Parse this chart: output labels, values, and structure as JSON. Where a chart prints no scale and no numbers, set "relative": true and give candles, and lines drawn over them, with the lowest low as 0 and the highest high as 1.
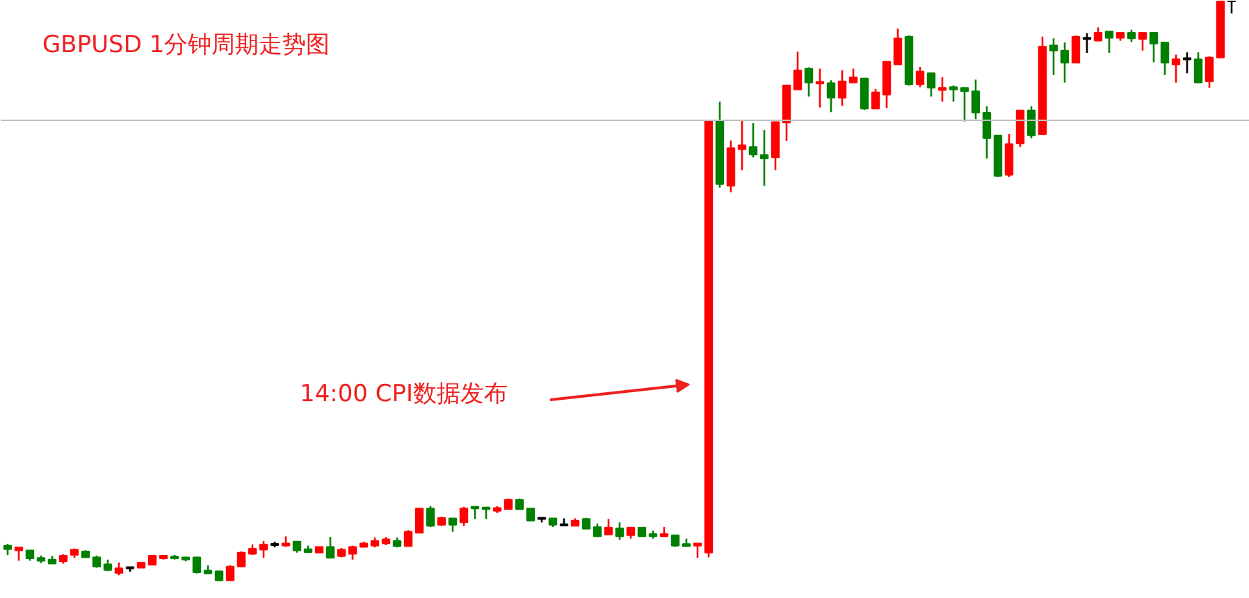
{
  "chart_data": {
    "type": "candlestick",
    "title": "GBPUSD 1分钟周期走势图",
    "relative": true,
    "categories": [
      null,
      null,
      null,
      null,
      null,
      null,
      null,
      null,
      null,
      null,
      null,
      null,
      null,
      null,
      null,
      null,
      null,
      null,
      null,
      null,
      null,
      null,
      null,
      null,
      null,
      null,
      null,
      null,
      null,
      null,
      null,
      null,
      null,
      null,
      null,
      null,
      null,
      null,
      null,
      null,
      null,
      null,
      null,
      null,
      null,
      null,
      null,
      null,
      null,
      null,
      null,
      null,
      null,
      null,
      null,
      null,
      null,
      null,
      null,
      null,
      null,
      null,
      null,
      null,
      null,
      null,
      null,
      null,
      null,
      null,
      null,
      null,
      null,
      null,
      null,
      null,
      null,
      null,
      null,
      null,
      null,
      null,
      null,
      null,
      null,
      null,
      null,
      null,
      null,
      null,
      null,
      null,
      null,
      null,
      null,
      null,
      null,
      null,
      null,
      null,
      null,
      null,
      null,
      null,
      null,
      null,
      null,
      null,
      null,
      null,
      null
    ],
    "ohlc": [
      [
        0.061,
        0.064,
        0.045,
        0.055
      ],
      [
        0.053,
        0.058,
        0.035,
        0.058
      ],
      [
        0.053,
        0.053,
        0.035,
        0.039
      ],
      [
        0.04,
        0.044,
        0.031,
        0.035
      ],
      [
        0.037,
        0.043,
        0.03,
        0.03
      ],
      [
        0.034,
        0.046,
        0.03,
        0.044
      ],
      [
        0.045,
        0.056,
        0.04,
        0.054
      ],
      [
        0.051,
        0.053,
        0.04,
        0.041
      ],
      [
        0.041,
        0.044,
        0.023,
        0.025
      ],
      [
        0.029,
        0.037,
        0.017,
        0.019
      ],
      [
        0.014,
        0.032,
        0.01,
        0.022
      ],
      [
        0.023,
        0.023,
        0.016,
        0.023
      ],
      [
        0.023,
        0.032,
        0.023,
        0.032
      ],
      [
        0.028,
        0.044,
        0.027,
        0.044
      ],
      [
        0.039,
        0.044,
        0.037,
        0.044
      ],
      [
        0.042,
        0.045,
        0.037,
        0.039
      ],
      [
        0.041,
        0.041,
        0.034,
        0.037
      ],
      [
        0.041,
        0.041,
        0.013,
        0.015
      ],
      [
        0.018,
        0.027,
        0.013,
        0.013
      ],
      [
        0.017,
        0.017,
        0,
        0.001
      ],
      [
        0.001,
        0.027,
        0.001,
        0.025
      ],
      [
        0.025,
        0.051,
        0.024,
        0.049
      ],
      [
        0.047,
        0.063,
        0.045,
        0.056
      ],
      [
        0.054,
        0.069,
        0.04,
        0.063
      ],
      [
        0.063,
        0.068,
        0.058,
        0.063
      ],
      [
        0.061,
        0.077,
        0.059,
        0.065
      ],
      [
        0.068,
        0.068,
        0.049,
        0.053
      ],
      [
        0.055,
        0.061,
        0.05,
        0.05
      ],
      [
        0.049,
        0.059,
        0.049,
        0.059
      ],
      [
        0.059,
        0.076,
        0.04,
        0.04
      ],
      [
        0.043,
        0.057,
        0.041,
        0.054
      ],
      [
        0.047,
        0.061,
        0.037,
        0.059
      ],
      [
        0.059,
        0.068,
        0.058,
        0.065
      ],
      [
        0.061,
        0.075,
        0.058,
        0.069
      ],
      [
        0.065,
        0.076,
        0.062,
        0.072
      ],
      [
        0.069,
        0.075,
        0.058,
        0.06
      ],
      [
        0.06,
        0.088,
        0.06,
        0.085
      ],
      [
        0.083,
        0.125,
        0.083,
        0.125
      ],
      [
        0.125,
        0.129,
        0.093,
        0.095
      ],
      [
        0.097,
        0.111,
        0.095,
        0.109
      ],
      [
        0.108,
        0.108,
        0.085,
        0.097
      ],
      [
        0.101,
        0.128,
        0.095,
        0.125
      ],
      [
        0.128,
        0.128,
        0.107,
        0.125
      ],
      [
        0.127,
        0.128,
        0.107,
        0.124
      ],
      [
        0.121,
        0.129,
        0.117,
        0.126
      ],
      [
        0.124,
        0.142,
        0.124,
        0.14
      ],
      [
        0.14,
        0.142,
        0.124,
        0.124
      ],
      [
        0.125,
        0.125,
        0.104,
        0.104
      ],
      [
        0.108,
        0.108,
        0.101,
        0.108
      ],
      [
        0.108,
        0.108,
        0.093,
        0.097
      ],
      [
        0.097,
        0.108,
        0.097,
        0.097
      ],
      [
        0.095,
        0.108,
        0.095,
        0.104
      ],
      [
        0.107,
        0.109,
        0.09,
        0.09
      ],
      [
        0.093,
        0.099,
        0.076,
        0.077
      ],
      [
        0.08,
        0.107,
        0.08,
        0.092
      ],
      [
        0.091,
        0.101,
        0.071,
        0.077
      ],
      [
        0.079,
        0.092,
        0.073,
        0.092
      ],
      [
        0.092,
        0.092,
        0.076,
        0.077
      ],
      [
        0.081,
        0.087,
        0.073,
        0.077
      ],
      [
        0.077,
        0.093,
        0.077,
        0.081
      ],
      [
        0.079,
        0.079,
        0.059,
        0.061
      ],
      [
        0.064,
        0.073,
        0.06,
        0.06
      ],
      [
        0.061,
        0.065,
        0.04,
        0.065
      ],
      [
        0.049,
        0.794,
        0.041,
        0.794
      ],
      [
        0.794,
        0.826,
        0.678,
        0.684
      ],
      [
        0.681,
        0.759,
        0.67,
        0.746
      ],
      [
        0.744,
        0.794,
        0.708,
        0.751
      ],
      [
        0.748,
        0.789,
        0.73,
        0.735
      ],
      [
        0.734,
        0.777,
        0.681,
        0.728
      ],
      [
        0.73,
        0.791,
        0.708,
        0.791
      ],
      [
        0.79,
        0.854,
        0.758,
        0.854
      ],
      [
        0.847,
        0.912,
        0.847,
        0.88
      ],
      [
        0.883,
        0.885,
        0.835,
        0.859
      ],
      [
        0.857,
        0.883,
        0.816,
        0.86
      ],
      [
        0.858,
        0.863,
        0.808,
        0.833
      ],
      [
        0.833,
        0.88,
        0.819,
        0.861
      ],
      [
        0.859,
        0.883,
        0.859,
        0.868
      ],
      [
        0.866,
        0.866,
        0.812,
        0.814
      ],
      [
        0.814,
        0.848,
        0.813,
        0.842
      ],
      [
        0.838,
        0.895,
        0.815,
        0.895
      ],
      [
        0.89,
        0.952,
        0.89,
        0.935
      ],
      [
        0.938,
        0.94,
        0.854,
        0.856
      ],
      [
        0.856,
        0.886,
        0.851,
        0.878
      ],
      [
        0.875,
        0.875,
        0.835,
        0.85
      ],
      [
        0.846,
        0.868,
        0.826,
        0.85
      ],
      [
        0.851,
        0.854,
        0.826,
        0.847
      ],
      [
        0.85,
        0.85,
        0.792,
        0.844
      ],
      [
        0.844,
        0.864,
        0.796,
        0.807
      ],
      [
        0.807,
        0.818,
        0.728,
        0.763
      ],
      [
        0.768,
        0.768,
        0.696,
        0.698
      ],
      [
        0.7,
        0.77,
        0.696,
        0.753
      ],
      [
        0.754,
        0.811,
        0.748,
        0.811
      ],
      [
        0.811,
        0.818,
        0.763,
        0.768
      ],
      [
        0.77,
        0.938,
        0.77,
        0.921
      ],
      [
        0.923,
        0.935,
        0.872,
        0.914
      ],
      [
        0.914,
        0.928,
        0.859,
        0.893
      ],
      [
        0.893,
        0.94,
        0.893,
        0.938
      ],
      [
        0.935,
        0.944,
        0.91,
        0.935
      ],
      [
        0.931,
        0.954,
        0.931,
        0.945
      ],
      [
        0.947,
        0.947,
        0.91,
        0.936
      ],
      [
        0.936,
        0.946,
        0.931,
        0.945
      ],
      [
        0.945,
        0.95,
        0.929,
        0.935
      ],
      [
        0.934,
        0.945,
        0.914,
        0.945
      ],
      [
        0.945,
        0.945,
        0.894,
        0.926
      ],
      [
        0.928,
        0.928,
        0.872,
        0.893
      ],
      [
        0.89,
        0.907,
        0.859,
        0.899
      ],
      [
        0.9,
        0.911,
        0.875,
        0.9
      ],
      [
        0.899,
        0.911,
        0.859,
        0.859
      ],
      [
        0.861,
        0.904,
        0.85,
        0.902
      ],
      [
        0.902,
        1,
        0.902,
        1
      ],
      [
        1,
        1,
        0.978,
        1
      ]
    ],
    "ref_lines": [
      {
        "axis": "y",
        "value": 0.794,
        "color": "#c0c0c0"
      }
    ],
    "annotations": [
      "14:00 CPI数据发布"
    ],
    "grid": false
  }
}
